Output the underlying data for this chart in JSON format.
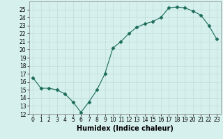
{
  "title": "",
  "xlabel": "Humidex (Indice chaleur)",
  "x": [
    0,
    1,
    2,
    3,
    4,
    5,
    6,
    7,
    8,
    9,
    10,
    11,
    12,
    13,
    14,
    15,
    16,
    17,
    18,
    19,
    20,
    21,
    22,
    23
  ],
  "y": [
    16.5,
    15.2,
    15.2,
    15.0,
    14.5,
    13.5,
    12.2,
    13.5,
    15.0,
    17.0,
    20.2,
    21.0,
    22.0,
    22.8,
    23.2,
    23.5,
    24.0,
    25.2,
    25.3,
    25.2,
    24.8,
    24.3,
    23.0,
    21.3
  ],
  "line_color": "#1a6b5a",
  "marker": "D",
  "marker_size": 2.5,
  "bg_color": "#d6f0ee",
  "grid_color": "#c0dbd8",
  "ylim": [
    12,
    26
  ],
  "xlim": [
    -0.5,
    23.5
  ],
  "yticks": [
    12,
    13,
    14,
    15,
    16,
    17,
    18,
    19,
    20,
    21,
    22,
    23,
    24,
    25
  ],
  "xticks": [
    0,
    1,
    2,
    3,
    4,
    5,
    6,
    7,
    8,
    9,
    10,
    11,
    12,
    13,
    14,
    15,
    16,
    17,
    18,
    19,
    20,
    21,
    22,
    23
  ],
  "xtick_labels": [
    "0",
    "1",
    "2",
    "3",
    "4",
    "5",
    "6",
    "7",
    "8",
    "9",
    "10",
    "11",
    "12",
    "13",
    "14",
    "15",
    "16",
    "17",
    "18",
    "19",
    "20",
    "21",
    "22",
    "23"
  ],
  "xlabel_fontsize": 7,
  "tick_fontsize": 5.5
}
